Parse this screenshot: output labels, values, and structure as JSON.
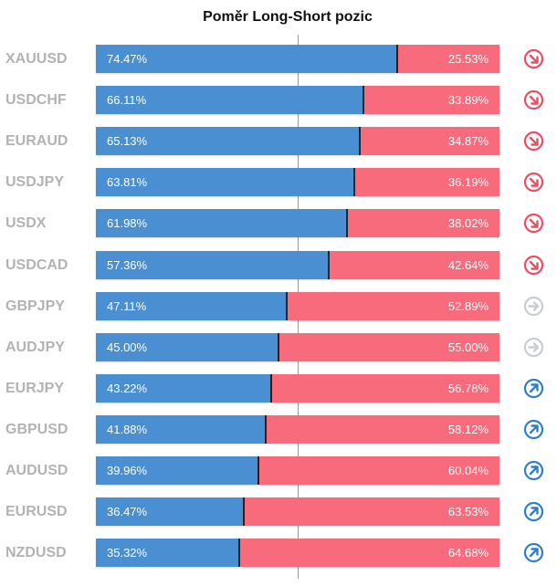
{
  "title": "Poměr Long-Short pozic",
  "colors": {
    "long": "#4a8fd2",
    "short": "#f76b7c",
    "symbol_text": "#b3b3b3",
    "signal_down": "#e84f61",
    "signal_neutral": "#c9ccd3",
    "signal_up": "#2f7fc7"
  },
  "chart_data": {
    "type": "bar",
    "stacked": true,
    "orientation": "horizontal",
    "title": "Poměr Long-Short pozic",
    "categories": [
      "XAUUSD",
      "USDCHF",
      "EURAUD",
      "USDJPY",
      "USDX",
      "USDCAD",
      "GBPJPY",
      "AUDJPY",
      "EURJPY",
      "GBPUSD",
      "AUDUSD",
      "EURUSD",
      "NZDUSD"
    ],
    "series": [
      {
        "values": [
          74.47,
          66.11,
          65.13,
          63.81,
          61.98,
          57.36,
          47.11,
          45.0,
          43.22,
          41.88,
          39.96,
          36.47,
          35.32
        ]
      },
      {
        "values": [
          25.53,
          33.89,
          34.87,
          36.19,
          38.02,
          42.64,
          52.89,
          55.0,
          56.78,
          58.12,
          60.04,
          63.53,
          64.68
        ]
      }
    ],
    "xlim": [
      0,
      100
    ],
    "reference_line": 50
  },
  "rows": [
    {
      "symbol": "XAUUSD",
      "long_label": "74.47%",
      "short_label": "25.53%",
      "signal": "down",
      "signal_icon": "arrow-down-right-icon"
    },
    {
      "symbol": "USDCHF",
      "long_label": "66.11%",
      "short_label": "33.89%",
      "signal": "down",
      "signal_icon": "arrow-down-right-icon"
    },
    {
      "symbol": "EURAUD",
      "long_label": "65.13%",
      "short_label": "34.87%",
      "signal": "down",
      "signal_icon": "arrow-down-right-icon"
    },
    {
      "symbol": "USDJPY",
      "long_label": "63.81%",
      "short_label": "36.19%",
      "signal": "down",
      "signal_icon": "arrow-down-right-icon"
    },
    {
      "symbol": "USDX",
      "long_label": "61.98%",
      "short_label": "38.02%",
      "signal": "down",
      "signal_icon": "arrow-down-right-icon"
    },
    {
      "symbol": "USDCAD",
      "long_label": "57.36%",
      "short_label": "42.64%",
      "signal": "down",
      "signal_icon": "arrow-down-right-icon"
    },
    {
      "symbol": "GBPJPY",
      "long_label": "47.11%",
      "short_label": "52.89%",
      "signal": "neutral",
      "signal_icon": "arrow-right-icon"
    },
    {
      "symbol": "AUDJPY",
      "long_label": "45.00%",
      "short_label": "55.00%",
      "signal": "neutral",
      "signal_icon": "arrow-right-icon"
    },
    {
      "symbol": "EURJPY",
      "long_label": "43.22%",
      "short_label": "56.78%",
      "signal": "up",
      "signal_icon": "arrow-up-right-icon"
    },
    {
      "symbol": "GBPUSD",
      "long_label": "41.88%",
      "short_label": "58.12%",
      "signal": "up",
      "signal_icon": "arrow-up-right-icon"
    },
    {
      "symbol": "AUDUSD",
      "long_label": "39.96%",
      "short_label": "60.04%",
      "signal": "up",
      "signal_icon": "arrow-up-right-icon"
    },
    {
      "symbol": "EURUSD",
      "long_label": "36.47%",
      "short_label": "63.53%",
      "signal": "up",
      "signal_icon": "arrow-up-right-icon"
    },
    {
      "symbol": "NZDUSD",
      "long_label": "35.32%",
      "short_label": "64.68%",
      "signal": "up",
      "signal_icon": "arrow-up-right-icon"
    }
  ]
}
